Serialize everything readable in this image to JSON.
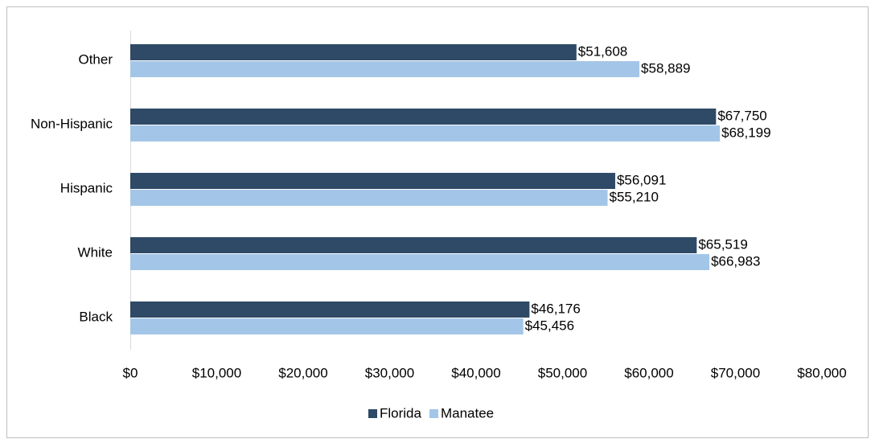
{
  "chart_data": {
    "type": "bar",
    "orientation": "horizontal",
    "categories": [
      "Other",
      "Non-Hispanic",
      "Hispanic",
      "White",
      "Black"
    ],
    "series": [
      {
        "name": "Florida",
        "color": "#2e4a66",
        "values": [
          51608,
          67750,
          56091,
          65519,
          46176
        ],
        "value_labels": [
          "$51,608",
          "$67,750",
          "$56,091",
          "$65,519",
          "$46,176"
        ]
      },
      {
        "name": "Manatee",
        "color": "#a3c6e8",
        "values": [
          58889,
          68199,
          55210,
          66983,
          45456
        ],
        "value_labels": [
          "$58,889",
          "$68,199",
          "$55,210",
          "$66,983",
          "$45,456"
        ]
      }
    ],
    "xlim": [
      0,
      80000
    ],
    "xticks": [
      {
        "value": 0,
        "label": "$0"
      },
      {
        "value": 10000,
        "label": "$10,000"
      },
      {
        "value": 20000,
        "label": "$20,000"
      },
      {
        "value": 30000,
        "label": "$30,000"
      },
      {
        "value": 40000,
        "label": "$40,000"
      },
      {
        "value": 50000,
        "label": "$50,000"
      },
      {
        "value": 60000,
        "label": "$60,000"
      },
      {
        "value": 70000,
        "label": "$70,000"
      },
      {
        "value": 80000,
        "label": "$80,000"
      }
    ],
    "legend": "bottom"
  }
}
